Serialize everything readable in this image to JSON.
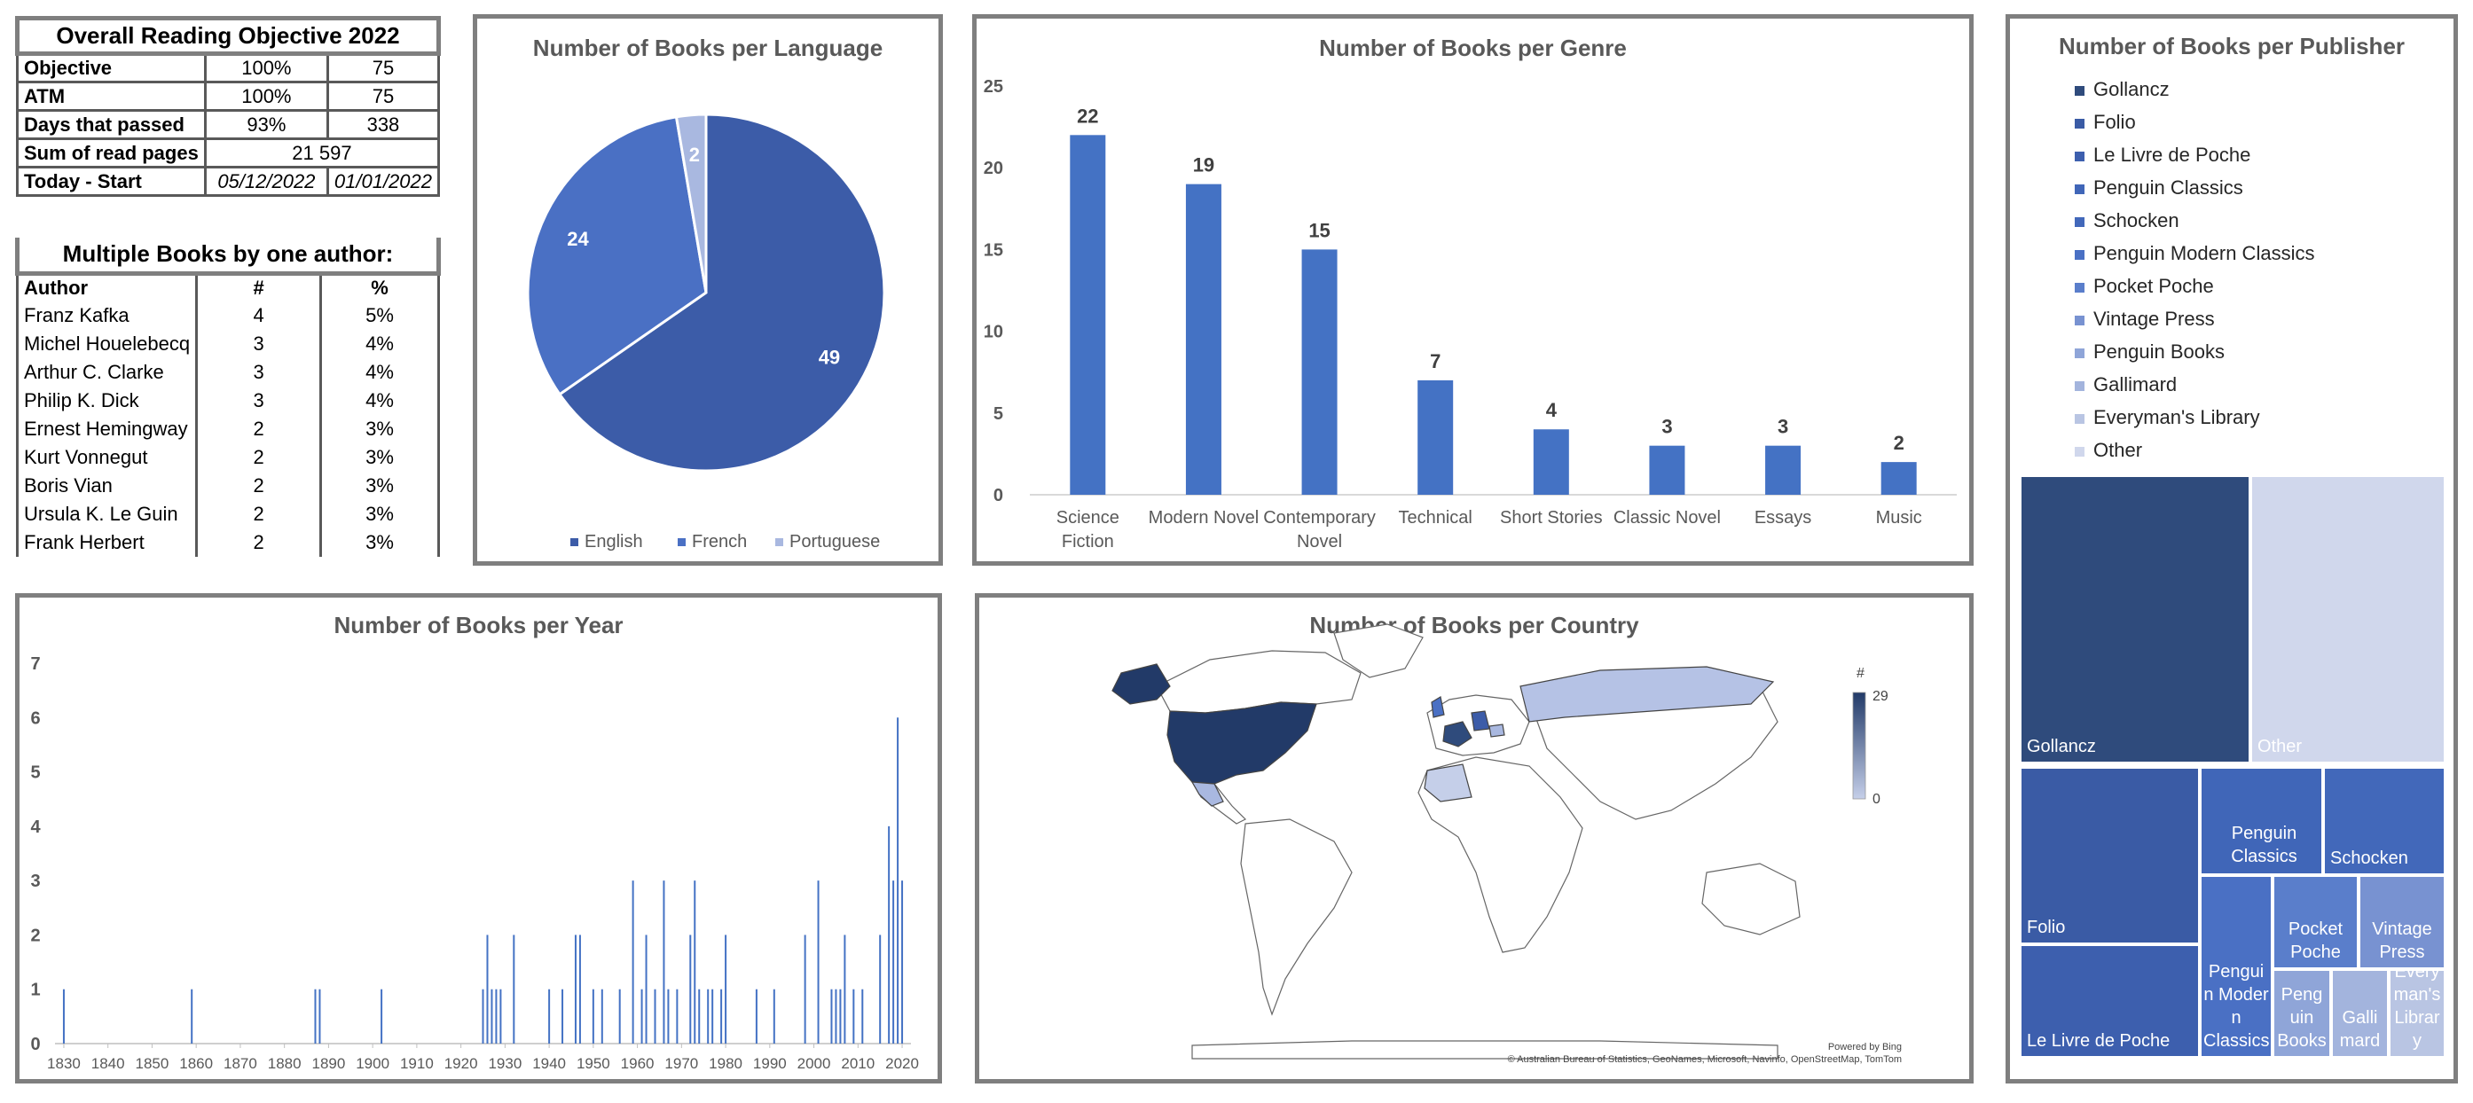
{
  "objective": {
    "title": "Overall Reading Objective 2022",
    "rows": [
      {
        "label": "Objective",
        "pct": "100%",
        "val": "75"
      },
      {
        "label": "ATM",
        "pct": "100%",
        "val": "75"
      },
      {
        "label": "Days that passed",
        "pct": "93%",
        "val": "338"
      }
    ],
    "sum_label": "Sum of read pages",
    "sum_value": "21 597",
    "today_label": "Today - Start",
    "today_date": "05/12/2022",
    "start_date": "01/01/2022"
  },
  "authors": {
    "title": "Multiple Books by one author:",
    "headers": [
      "Author",
      "#",
      "%"
    ],
    "rows": [
      [
        "Franz Kafka",
        "4",
        "5%"
      ],
      [
        "Michel Houelebecq",
        "3",
        "4%"
      ],
      [
        "Arthur C. Clarke",
        "3",
        "4%"
      ],
      [
        "Philip K. Dick",
        "3",
        "4%"
      ],
      [
        "Ernest Hemingway",
        "2",
        "3%"
      ],
      [
        "Kurt Vonnegut",
        "2",
        "3%"
      ],
      [
        "Boris Vian",
        "2",
        "3%"
      ],
      [
        "Ursula K. Le Guin",
        "2",
        "3%"
      ],
      [
        "Frank Herbert",
        "2",
        "3%"
      ]
    ]
  },
  "colors": {
    "dark": "#2f4b7c",
    "mid": "#3c5ca8",
    "bar": "#4472c4",
    "light": "#a9b8e0",
    "lighter": "#d0d7ec"
  },
  "map": {
    "title": "Number of Books per Country",
    "legend_title": "#",
    "legend_max": "29",
    "legend_min": "0",
    "credit1": "Powered by Bing",
    "credit2": "© Australian Bureau of Statistics, GeoNames, Microsoft, Navinfo, OpenStreetMap, TomTom"
  },
  "chart_data": [
    {
      "type": "pie",
      "title": "Number of Books per Language",
      "categories": [
        "English",
        "French",
        "Portuguese"
      ],
      "values": [
        49,
        24,
        2
      ],
      "colors": [
        "#3c5ca8",
        "#4a70c4",
        "#a9b8e0"
      ],
      "legend": "bottom"
    },
    {
      "type": "bar",
      "title": "Number of Books per Genre",
      "categories": [
        "Science Fiction",
        "Modern Novel",
        "Contemporary Novel",
        "Technical",
        "Short Stories",
        "Classic Novel",
        "Essays",
        "Music"
      ],
      "category_lines": [
        [
          "Science",
          "Fiction"
        ],
        [
          "Modern Novel"
        ],
        [
          "Contemporary",
          "Novel"
        ],
        [
          "Technical"
        ],
        [
          "Short Stories"
        ],
        [
          "Classic Novel"
        ],
        [
          "Essays"
        ],
        [
          "Music"
        ]
      ],
      "values": [
        22,
        19,
        15,
        7,
        4,
        3,
        3,
        2
      ],
      "ylim": [
        0,
        25
      ],
      "yticks": [
        0,
        5,
        10,
        15,
        20,
        25
      ],
      "data_labels": true
    },
    {
      "type": "bar",
      "title": "Number of Books per Year",
      "x": [
        1830,
        1859,
        1887,
        1888,
        1902,
        1925,
        1926,
        1927,
        1928,
        1929,
        1932,
        1940,
        1943,
        1946,
        1947,
        1950,
        1952,
        1956,
        1959,
        1961,
        1962,
        1964,
        1966,
        1967,
        1969,
        1972,
        1973,
        1974,
        1976,
        1977,
        1979,
        1980,
        1987,
        1991,
        1998,
        2001,
        2004,
        2005,
        2006,
        2007,
        2009,
        2011,
        2015,
        2017,
        2018,
        2019,
        2020
      ],
      "values": [
        1,
        1,
        1,
        1,
        1,
        1,
        2,
        1,
        1,
        1,
        2,
        1,
        1,
        2,
        2,
        1,
        1,
        1,
        3,
        1,
        2,
        1,
        3,
        1,
        1,
        2,
        3,
        1,
        1,
        1,
        1,
        2,
        1,
        1,
        2,
        3,
        1,
        1,
        1,
        2,
        1,
        1,
        2,
        4,
        3,
        6,
        3
      ],
      "xlim": [
        1828,
        2022
      ],
      "xticks": [
        1830,
        1840,
        1850,
        1860,
        1870,
        1880,
        1890,
        1900,
        1910,
        1920,
        1930,
        1940,
        1950,
        1960,
        1970,
        1980,
        1990,
        2000,
        2010,
        2020
      ],
      "ylim": [
        0,
        7
      ],
      "yticks": [
        0,
        1,
        2,
        3,
        4,
        5,
        6,
        7
      ]
    },
    {
      "type": "treemap",
      "title": "Number of Books per Publisher",
      "categories": [
        "Gollancz",
        "Folio",
        "Le Livre de Poche",
        "Penguin Classics",
        "Schocken",
        "Penguin Modern Classics",
        "Pocket Poche",
        "Vintage Press",
        "Penguin Books",
        "Gallimard",
        "Everyman's Library",
        "Other"
      ],
      "tile_labels": [
        "Gollancz",
        "Folio",
        "Le Livre de Poche",
        "Penguin Classics",
        "Schocken",
        "Pengui n Moder n Classics",
        "Pocket Poche",
        "Vintage Press",
        "Peng uin Books",
        "Galli mard",
        "Every man's Librar y",
        "Other"
      ],
      "values": [
        15,
        8,
        5,
        4,
        4,
        4,
        2,
        2,
        2,
        2,
        2,
        12
      ],
      "colors": [
        "#2f4b7c",
        "#3a5ba5",
        "#3d5fae",
        "#4066b8",
        "#4268ba",
        "#4a70c4",
        "#5a7ecb",
        "#7892d1",
        "#8fa5d8",
        "#a3b4dd",
        "#b9c5e3",
        "#d0d7ec"
      ],
      "legend": "top"
    }
  ]
}
